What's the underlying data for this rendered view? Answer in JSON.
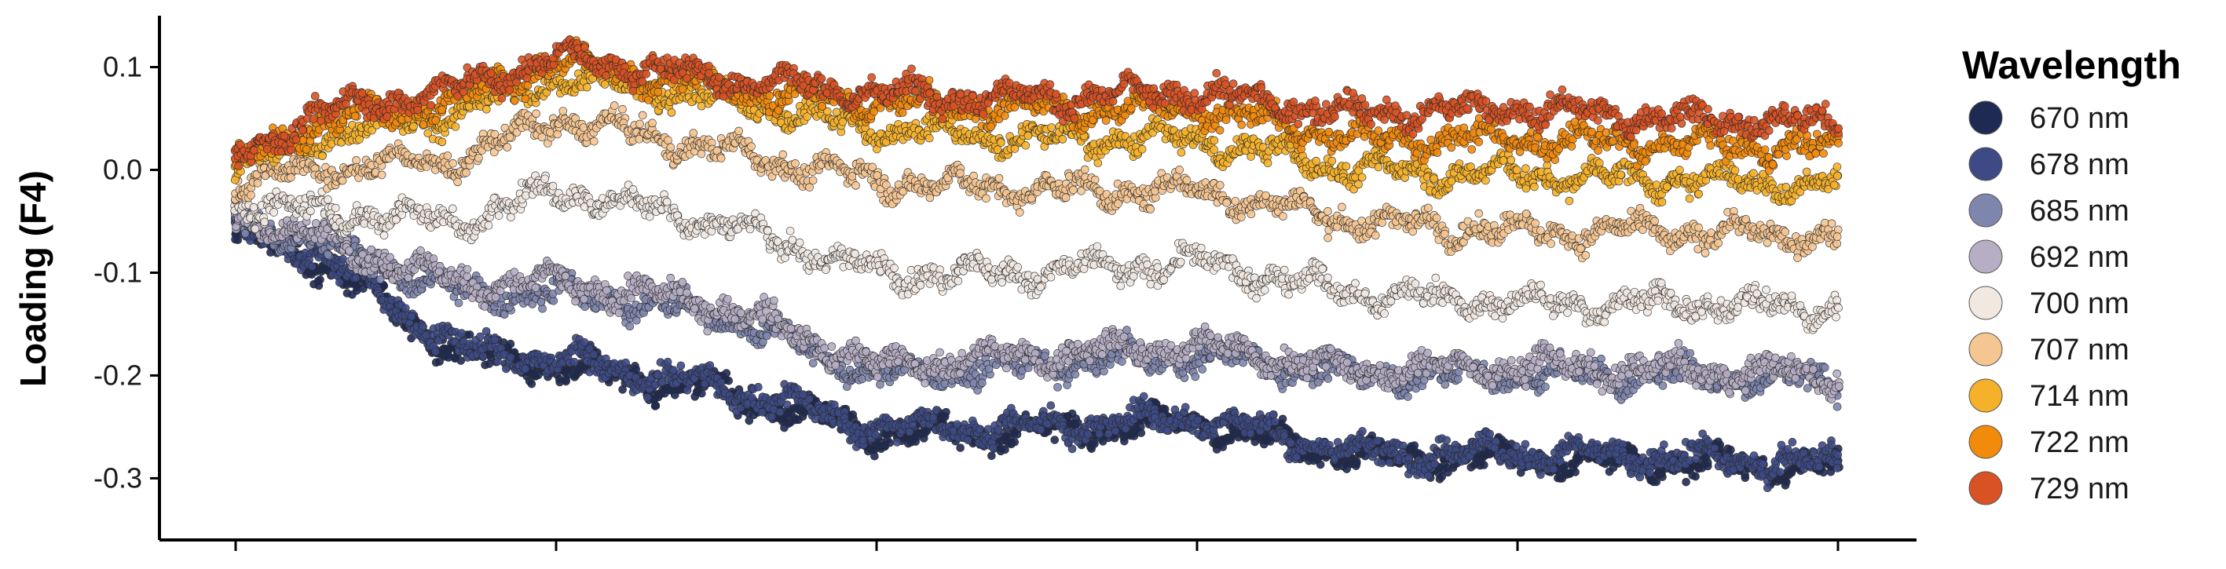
{
  "chart_data": {
    "type": "scatter",
    "title": "",
    "xlabel": "",
    "ylabel": "Loading (F4)",
    "ylim": [
      -0.36,
      0.15
    ],
    "xlim": [
      0,
      1
    ],
    "x_tick_count": 6,
    "y_ticks": [
      {
        "value": 0.1,
        "label": "0.1"
      },
      {
        "value": 0.0,
        "label": "0.0"
      },
      {
        "value": -0.1,
        "label": "-0.1"
      },
      {
        "value": -0.2,
        "label": "-0.2"
      },
      {
        "value": -0.3,
        "label": "-0.3"
      }
    ],
    "grid": false,
    "legend": {
      "title": "Wavelength",
      "position": "right"
    },
    "series": [
      {
        "name": "670 nm",
        "color": "#1f2a52",
        "trend_x": [
          0,
          0.05,
          0.14,
          0.2,
          0.3,
          0.4,
          0.5,
          0.6,
          0.7,
          0.8,
          0.9,
          1.0
        ],
        "trend_y": [
          -0.065,
          -0.085,
          -0.18,
          -0.19,
          -0.215,
          -0.255,
          -0.255,
          -0.245,
          -0.28,
          -0.28,
          -0.285,
          -0.29
        ]
      },
      {
        "name": "678 nm",
        "color": "#3d4a85",
        "trend_x": [
          0,
          0.05,
          0.14,
          0.2,
          0.3,
          0.4,
          0.5,
          0.6,
          0.7,
          0.8,
          0.9,
          1.0
        ],
        "trend_y": [
          -0.06,
          -0.08,
          -0.175,
          -0.185,
          -0.21,
          -0.25,
          -0.25,
          -0.24,
          -0.275,
          -0.275,
          -0.28,
          -0.285
        ]
      },
      {
        "name": "685 nm",
        "color": "#7f86ad",
        "trend_x": [
          0,
          0.05,
          0.14,
          0.2,
          0.3,
          0.4,
          0.5,
          0.6,
          0.7,
          0.8,
          0.9,
          1.0
        ],
        "trend_y": [
          -0.05,
          -0.07,
          -0.12,
          -0.12,
          -0.14,
          -0.2,
          -0.19,
          -0.18,
          -0.2,
          -0.2,
          -0.2,
          -0.205
        ]
      },
      {
        "name": "692 nm",
        "color": "#b6aec4",
        "trend_x": [
          0,
          0.05,
          0.14,
          0.2,
          0.3,
          0.4,
          0.5,
          0.6,
          0.7,
          0.8,
          0.9,
          1.0
        ],
        "trend_y": [
          -0.045,
          -0.065,
          -0.11,
          -0.11,
          -0.13,
          -0.19,
          -0.18,
          -0.17,
          -0.195,
          -0.19,
          -0.195,
          -0.2
        ]
      },
      {
        "name": "700 nm",
        "color": "#f1e8e1",
        "trend_x": [
          0,
          0.05,
          0.14,
          0.2,
          0.3,
          0.4,
          0.5,
          0.6,
          0.7,
          0.8,
          0.9,
          1.0
        ],
        "trend_y": [
          -0.03,
          -0.04,
          -0.05,
          -0.02,
          -0.05,
          -0.1,
          -0.1,
          -0.09,
          -0.12,
          -0.13,
          -0.13,
          -0.135
        ]
      },
      {
        "name": "707 nm",
        "color": "#f5c592",
        "trend_x": [
          0,
          0.05,
          0.14,
          0.2,
          0.3,
          0.4,
          0.5,
          0.6,
          0.7,
          0.8,
          0.9,
          1.0
        ],
        "trend_y": [
          -0.01,
          0.0,
          0.01,
          0.05,
          0.02,
          -0.01,
          -0.02,
          -0.02,
          -0.05,
          -0.06,
          -0.06,
          -0.065
        ]
      },
      {
        "name": "714 nm",
        "color": "#f6b12a",
        "trend_x": [
          0,
          0.05,
          0.14,
          0.2,
          0.3,
          0.4,
          0.5,
          0.6,
          0.7,
          0.8,
          0.9,
          1.0
        ],
        "trend_y": [
          0.0,
          0.03,
          0.055,
          0.09,
          0.07,
          0.04,
          0.03,
          0.03,
          0.0,
          -0.005,
          -0.01,
          -0.015
        ]
      },
      {
        "name": "722 nm",
        "color": "#f28a0c",
        "trend_x": [
          0,
          0.05,
          0.14,
          0.2,
          0.3,
          0.4,
          0.5,
          0.6,
          0.7,
          0.8,
          0.9,
          1.0
        ],
        "trend_y": [
          0.005,
          0.045,
          0.07,
          0.105,
          0.08,
          0.065,
          0.06,
          0.06,
          0.03,
          0.03,
          0.025,
          0.02
        ]
      },
      {
        "name": "729 nm",
        "color": "#d95223",
        "trend_x": [
          0,
          0.05,
          0.14,
          0.2,
          0.3,
          0.4,
          0.5,
          0.6,
          0.7,
          0.8,
          0.9,
          1.0
        ],
        "trend_y": [
          0.01,
          0.055,
          0.08,
          0.11,
          0.09,
          0.075,
          0.07,
          0.075,
          0.055,
          0.06,
          0.05,
          0.045
        ]
      }
    ]
  }
}
